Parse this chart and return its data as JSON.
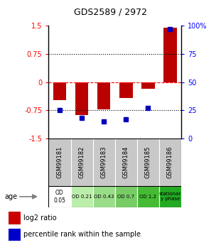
{
  "title": "GDS2589 / 2972",
  "samples": [
    "GSM99181",
    "GSM99182",
    "GSM99183",
    "GSM99184",
    "GSM99185",
    "GSM99186"
  ],
  "log2_ratio": [
    -0.48,
    -0.88,
    -0.72,
    -0.42,
    -0.18,
    1.45
  ],
  "percentile_rank": [
    25,
    18,
    15,
    17,
    27,
    97
  ],
  "age_labels": [
    "OD\n0.05",
    "OD 0.21",
    "OD 0.43",
    "OD 0.7",
    "OD 1.2",
    "stationar\ny phase"
  ],
  "age_colors": [
    "#ffffff",
    "#bbeeaa",
    "#99dd88",
    "#77cc66",
    "#44bb33",
    "#22aa22"
  ],
  "ylim_left": [
    -1.5,
    1.5
  ],
  "ylim_right": [
    0,
    100
  ],
  "yticks_left": [
    -1.5,
    -0.75,
    0,
    0.75,
    1.5
  ],
  "yticks_right": [
    0,
    25,
    50,
    75,
    100
  ],
  "bar_color": "#bb0000",
  "dot_color": "#0000bb",
  "background_header": "#c8c8c8",
  "legend_red": "#cc0000",
  "legend_blue": "#0000cc"
}
